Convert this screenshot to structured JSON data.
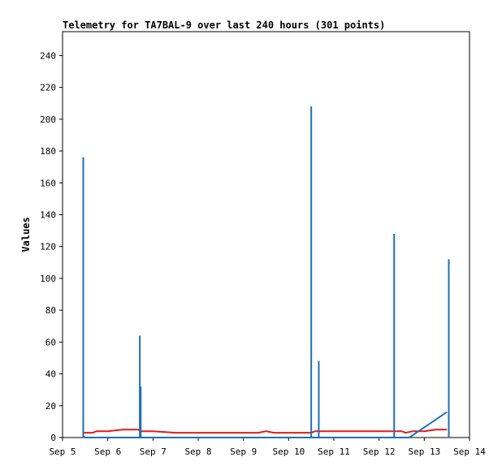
{
  "chart_data": {
    "type": "line",
    "title": "Telemetry for TA7BAL-9 over last 240 hours (301 points)",
    "xlabel": "",
    "ylabel": "Values",
    "x_ticks": [
      "Sep 5",
      "Sep 6",
      "Sep 7",
      "Sep 8",
      "Sep 9",
      "Sep 10",
      "Sep 11",
      "Sep 12",
      "Sep 13",
      "Sep 14"
    ],
    "y_ticks": [
      "0",
      "20",
      "40",
      "60",
      "80",
      "100",
      "120",
      "140",
      "160",
      "180",
      "200",
      "220",
      "240"
    ],
    "xlim": [
      "Sep 5",
      "Sep 14"
    ],
    "ylim": [
      0,
      255
    ],
    "grid": false,
    "series": [
      {
        "color": "#e31a1c",
        "points": [
          [
            "Sep 5 11:00",
            3
          ],
          [
            "Sep 5 12:00",
            3
          ],
          [
            "Sep 5 16:00",
            3
          ],
          [
            "Sep 5 18:00",
            4
          ],
          [
            "Sep 6 00:00",
            4
          ],
          [
            "Sep 6 08:00",
            5
          ],
          [
            "Sep 6 16:00",
            5
          ],
          [
            "Sep 6 18:00",
            4
          ],
          [
            "Sep 7 00:00",
            4
          ],
          [
            "Sep 7 12:00",
            3
          ],
          [
            "Sep 8 00:00",
            3
          ],
          [
            "Sep 8 20:00",
            3
          ],
          [
            "Sep 9 00:00",
            3
          ],
          [
            "Sep 9 08:00",
            3
          ],
          [
            "Sep 9 12:00",
            4
          ],
          [
            "Sep 9 16:00",
            3
          ],
          [
            "Sep 10 00:00",
            3
          ],
          [
            "Sep 10 12:00",
            3
          ],
          [
            "Sep 10 14:00",
            4
          ],
          [
            "Sep 11 00:00",
            4
          ],
          [
            "Sep 12 00:00",
            4
          ],
          [
            "Sep 12 12:00",
            4
          ],
          [
            "Sep 12 14:00",
            3
          ],
          [
            "Sep 12 18:00",
            4
          ],
          [
            "Sep 13 00:00",
            4
          ],
          [
            "Sep 13 06:00",
            5
          ],
          [
            "Sep 13 12:00",
            5
          ]
        ]
      },
      {
        "color": "#1f6fb4",
        "points": [
          [
            "Sep 5 11:00",
            1
          ],
          [
            "Sep 5 12:00",
            0
          ],
          [
            "Sep 6 00:00",
            0
          ],
          [
            "Sep 6 16:00",
            0
          ],
          [
            "Sep 6 17:00",
            0
          ],
          [
            "Sep 7 00:00",
            0
          ],
          [
            "Sep 8 00:00",
            0
          ],
          [
            "Sep 9 00:00",
            0
          ],
          [
            "Sep 10 00:00",
            0
          ],
          [
            "Sep 10 12:00",
            0
          ],
          [
            "Sep 11 00:00",
            0
          ],
          [
            "Sep 12 00:00",
            0
          ],
          [
            "Sep 12 12:00",
            0
          ],
          [
            "Sep 12 16:00",
            0
          ],
          [
            "Sep 13 12:00",
            16
          ]
        ],
        "spikes": [
          [
            "Sep 5 11:00",
            176
          ],
          [
            "Sep 6 17:00",
            64
          ],
          [
            "Sep 6 17:30",
            32
          ],
          [
            "Sep 10 12:00",
            208
          ],
          [
            "Sep 10 16:00",
            48
          ],
          [
            "Sep 12 08:00",
            128
          ],
          [
            "Sep 13 13:00",
            112
          ]
        ]
      }
    ]
  }
}
